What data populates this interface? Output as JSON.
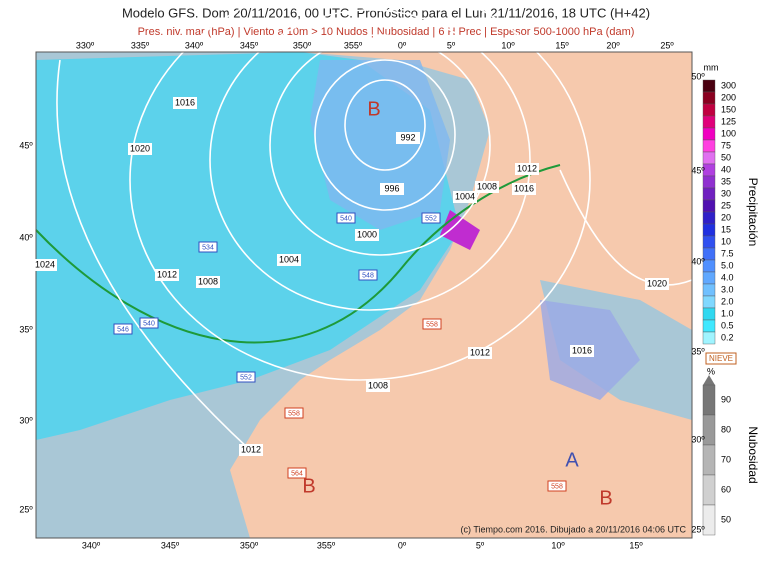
{
  "header": {
    "title": "Modelo GFS. Dom 20/11/2016, 00 UTC. Pronóstico para el Lun 21/11/2016, 18 UTC (H+42)",
    "subtitle": "Pres. niv. mar (hPa) | Viento a 10m > 10 Nudos | Nubosidad | 6 H Prec | Espesor 500-1000 hPa (dam)"
  },
  "map": {
    "top_lon_labels": [
      "330º",
      "335º",
      "340º",
      "345º",
      "350º",
      "355º",
      "0º",
      "5º",
      "10º",
      "15º",
      "20º",
      "25º"
    ],
    "bottom_lon_labels": [
      "340º",
      "345º",
      "350º",
      "355º",
      "0º",
      "5º",
      "10º",
      "15º"
    ],
    "left_lat_labels": [
      "45º",
      "40º",
      "35º",
      "30º",
      "25º"
    ],
    "right_lat_labels": [
      "50º",
      "45º",
      "40º",
      "35º",
      "30º",
      "25º"
    ],
    "isobar_labels": [
      "1016",
      "1020",
      "992",
      "996",
      "1000",
      "1004",
      "1012",
      "1008",
      "1024",
      "1004",
      "1008",
      "1012",
      "1016",
      "1020",
      "1016",
      "1012",
      "1008",
      "1012"
    ],
    "thickness_labels": [
      "540",
      "534",
      "548",
      "540",
      "546",
      "552",
      "558",
      "552",
      "558",
      "564",
      "558"
    ],
    "pressure_centers": [
      "B",
      "B",
      "A",
      "B"
    ],
    "credit": "(c) Tiempo.com 2016. Dibujado a 20/11/2016 04:06 UTC"
  },
  "precip_legend": {
    "unit": "mm",
    "title": "Precipitación",
    "levels": [
      "300",
      "200",
      "150",
      "125",
      "100",
      "75",
      "50",
      "40",
      "35",
      "30",
      "25",
      "20",
      "15",
      "10",
      "7.5",
      "5.0",
      "4.0",
      "3.0",
      "2.0",
      "1.0",
      "0.5",
      "0.2"
    ]
  },
  "cloud_legend": {
    "badge": "NIEVE",
    "unit": "%",
    "title": "Nubosidad",
    "levels": [
      "90",
      "80",
      "70",
      "60",
      "50"
    ]
  }
}
